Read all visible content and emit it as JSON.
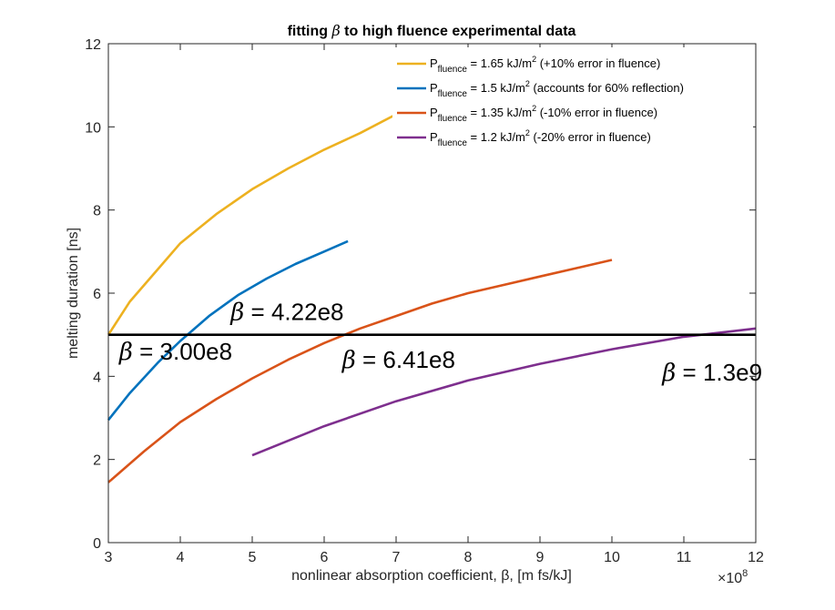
{
  "chart_data": {
    "type": "line",
    "title": {
      "prefix": "fitting",
      "symbol": "β",
      "suffix": "to high fluence experimental data"
    },
    "xlabel": "nonlinear absorption coefficient, β, [m fs/kJ]",
    "ylabel": "melting duration [ns]",
    "x_multiplier": "×10",
    "x_multiplier_exp": "8",
    "xlim": [
      3,
      12
    ],
    "ylim": [
      0,
      12
    ],
    "x_ticks": [
      "3",
      "4",
      "5",
      "6",
      "7",
      "8",
      "9",
      "10",
      "11",
      "12"
    ],
    "y_ticks": [
      "0",
      "2",
      "4",
      "6",
      "8",
      "10",
      "12"
    ],
    "grid": false,
    "legend_position": "top-right",
    "series": [
      {
        "name": {
          "pre": "P",
          "sub": "fluence",
          "mid": " = 1.65 kJ/m",
          "sup": "2",
          "post": " (+10% error in fluence)"
        },
        "color": "#EDB120",
        "x": [
          3.0,
          3.3,
          3.7,
          4.0,
          4.5,
          5.0,
          5.5,
          6.0,
          6.5,
          7.0
        ],
        "y": [
          5.0,
          5.8,
          6.6,
          7.2,
          7.9,
          8.5,
          9.0,
          9.45,
          9.85,
          10.3
        ]
      },
      {
        "name": {
          "pre": "P",
          "sub": "fluence",
          "mid": " = 1.5 kJ/m",
          "sup": "2",
          "post": " (accounts for 60% reflection)"
        },
        "color": "#0072BD",
        "x": [
          3.0,
          3.3,
          3.7,
          4.0,
          4.4,
          4.8,
          5.2,
          5.6,
          6.0,
          6.33
        ],
        "y": [
          2.95,
          3.6,
          4.35,
          4.85,
          5.45,
          5.95,
          6.35,
          6.7,
          7.0,
          7.25
        ]
      },
      {
        "name": {
          "pre": "P",
          "sub": "fluence",
          "mid": " = 1.35 kJ/m",
          "sup": "2",
          "post": " (-10% error in fluence)"
        },
        "color": "#D95319",
        "x": [
          3.0,
          3.5,
          4.0,
          4.5,
          5.0,
          5.5,
          6.0,
          6.5,
          7.0,
          7.5,
          8.0,
          8.5,
          9.0,
          9.5,
          10.0
        ],
        "y": [
          1.45,
          2.2,
          2.9,
          3.45,
          3.95,
          4.4,
          4.8,
          5.15,
          5.45,
          5.75,
          6.0,
          6.2,
          6.4,
          6.6,
          6.8
        ]
      },
      {
        "name": {
          "pre": "P",
          "sub": "fluence",
          "mid": " = 1.2 kJ/m",
          "sup": "2",
          "post": " (-20% error in fluence)"
        },
        "color": "#7E2F8E",
        "x": [
          5.0,
          6.0,
          7.0,
          8.0,
          9.0,
          10.0,
          11.0,
          12.0
        ],
        "y": [
          2.1,
          2.8,
          3.4,
          3.9,
          4.3,
          4.65,
          4.95,
          5.15
        ]
      }
    ],
    "reference_line": {
      "y": 5,
      "color": "#000000"
    },
    "annotations": [
      {
        "symbol": "β",
        "text": " = 4.22e8",
        "x": 4.7,
        "y": 5.35
      },
      {
        "symbol": "β",
        "text": " = 3.00e8",
        "x": 3.15,
        "y": 4.4
      },
      {
        "symbol": "β",
        "text": " = 6.41e8",
        "x": 6.25,
        "y": 4.2
      },
      {
        "symbol": "β",
        "text": " = 1.3e9",
        "x": 10.7,
        "y": 3.9
      }
    ]
  }
}
